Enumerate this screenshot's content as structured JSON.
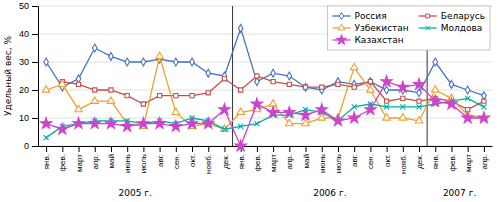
{
  "chart_data": {
    "type": "line",
    "ylabel": "Удельный вес, %",
    "categories": [
      "янв.",
      "фев.",
      "март",
      "апр.",
      "май",
      "июнь",
      "июль",
      "авг.",
      "сен.",
      "окт.",
      "нояб.",
      "дек.",
      "янв.",
      "фев.",
      "март",
      "апр.",
      "май",
      "июнь",
      "июль",
      "авг.",
      "сен.",
      "окт.",
      "нояб.",
      "дек.",
      "янв.",
      "фев.",
      "март",
      "апр."
    ],
    "annotations": [
      {
        "text": "2005 г."
      },
      {
        "text": "2006 г."
      },
      {
        "text": "2007 г."
      }
    ],
    "ylim": [
      0,
      50
    ],
    "yticks": [
      0,
      10,
      20,
      30,
      40,
      50
    ],
    "grid": true,
    "legend": "upper right",
    "series": [
      {
        "name": "Россия",
        "color": "#4472C4",
        "marker": "diamond",
        "values": [
          30,
          21,
          24,
          35,
          32,
          30,
          30,
          31,
          30,
          30,
          26,
          25,
          42,
          23,
          26,
          25,
          21,
          20,
          23,
          22,
          23,
          20,
          20,
          19,
          30,
          22,
          20,
          18
        ]
      },
      {
        "name": "Беларусь",
        "color": "#C0504D",
        "marker": "square",
        "values": [
          null,
          23,
          22,
          20,
          20,
          18,
          15,
          18,
          18,
          18,
          19,
          24,
          20,
          25,
          23,
          22,
          21,
          21,
          22,
          21,
          23,
          16,
          17,
          16,
          17,
          16,
          13,
          16
        ]
      },
      {
        "name": "Узбекистан",
        "color": "#F0A030",
        "marker": "triangle",
        "values": [
          20,
          22,
          13,
          16,
          16,
          8,
          7,
          32,
          12,
          7,
          8,
          6,
          12,
          13,
          15,
          8,
          8,
          10,
          10,
          28,
          20,
          10,
          10,
          9,
          20,
          17,
          11,
          10
        ]
      },
      {
        "name": "Молдова",
        "color": "#00B0A0",
        "marker": "x",
        "values": [
          3,
          7,
          8,
          9,
          9,
          9,
          8,
          9,
          8,
          10,
          9,
          6,
          7,
          8,
          11,
          11,
          13,
          12,
          9,
          14,
          15,
          14,
          14,
          14,
          15,
          16,
          17,
          14
        ]
      },
      {
        "name": "Казахстан",
        "color": "#CC44CC",
        "marker": "star",
        "values": [
          8,
          6,
          8,
          8,
          8,
          7,
          8,
          8,
          7,
          8,
          8,
          13,
          0,
          15,
          12,
          12,
          11,
          13,
          9,
          10,
          13,
          23,
          21,
          22,
          16,
          15,
          10,
          10
        ]
      }
    ]
  }
}
